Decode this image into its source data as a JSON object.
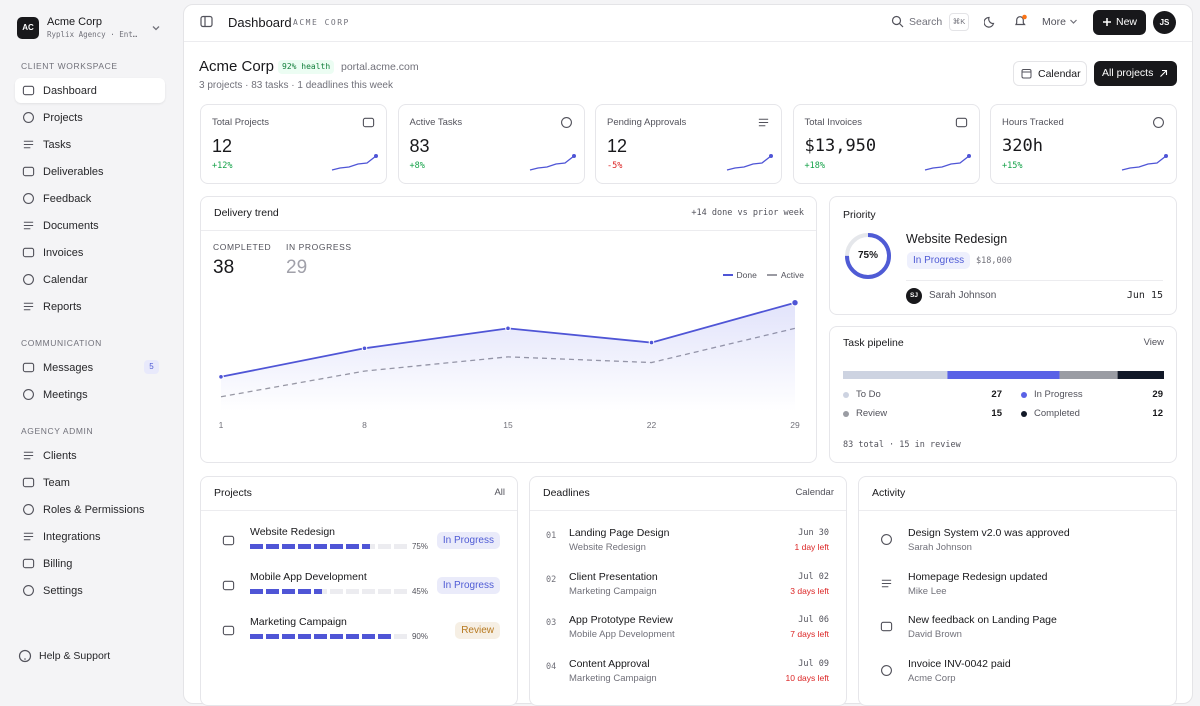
{
  "sidebar": {
    "org": {
      "initials": "AC",
      "name": "Acme Corp",
      "subtitle": "Ryplix Agency · Ent…"
    },
    "sections": [
      {
        "title": "CLIENT WORKSPACE",
        "items": [
          {
            "label": "Dashboard",
            "active": true
          },
          {
            "label": "Projects"
          },
          {
            "label": "Tasks"
          },
          {
            "label": "Deliverables"
          },
          {
            "label": "Feedback"
          },
          {
            "label": "Documents"
          },
          {
            "label": "Invoices"
          },
          {
            "label": "Calendar"
          },
          {
            "label": "Reports"
          }
        ]
      },
      {
        "title": "COMMUNICATION",
        "items": [
          {
            "label": "Messages",
            "badge": 5
          },
          {
            "label": "Meetings"
          }
        ]
      },
      {
        "title": "AGENCY ADMIN",
        "items": [
          {
            "label": "Clients"
          },
          {
            "label": "Team"
          },
          {
            "label": "Roles & Permissions"
          },
          {
            "label": "Integrations"
          },
          {
            "label": "Billing"
          },
          {
            "label": "Settings"
          }
        ]
      }
    ],
    "help": "Help & Support"
  },
  "topbar": {
    "title": "Dashboard",
    "subtitle": "ACME CORP",
    "search": "Search",
    "shortcut": "⌘K",
    "more": "More",
    "new": "New",
    "avatar": "JS"
  },
  "header": {
    "name": "Acme Corp",
    "health": "92% health",
    "url": "portal.acme.com",
    "summary": "3 projects · 83 tasks · 1 deadlines this week",
    "calendar": "Calendar",
    "all_projects": "All projects"
  },
  "kpis": [
    {
      "label": "Total Projects",
      "value": "12",
      "change": "+12%"
    },
    {
      "label": "Active Tasks",
      "value": "83",
      "change": "+8%"
    },
    {
      "label": "Pending Approvals",
      "value": "12",
      "change": "-5%"
    },
    {
      "label": "Total Invoices",
      "value": "$13,950",
      "change": "+18%"
    },
    {
      "label": "Hours Tracked",
      "value": "320h",
      "change": "+15%"
    }
  ],
  "delivery": {
    "title": "Delivery trend",
    "note": "+14 done vs prior week",
    "stats": [
      {
        "label": "COMPLETED",
        "value": 38
      },
      {
        "label": "IN PROGRESS",
        "value": 29
      }
    ],
    "chart_data": {
      "type": "line",
      "x": [
        1,
        8,
        15,
        22,
        29
      ],
      "xlim": [
        1,
        29
      ],
      "xticks": [
        1,
        8,
        15,
        22,
        29
      ],
      "ylim": [
        0,
        40
      ],
      "series": [
        {
          "name": "Done",
          "color": "#4f55d6",
          "values": [
            12,
            22,
            29,
            24,
            38
          ]
        },
        {
          "name": "Active",
          "color": "#9a9aa2",
          "values": [
            5,
            14,
            19,
            17,
            29
          ]
        }
      ]
    }
  },
  "priority": {
    "title": "Priority",
    "progress": 75,
    "progress_label": "75%",
    "project": "Website Redesign",
    "status": "In Progress",
    "budget": "$18,000",
    "owner_initials": "SJ",
    "owner": "Sarah Johnson",
    "date": "Jun 15"
  },
  "pipeline": {
    "title": "Task pipeline",
    "action": "View",
    "segments": [
      {
        "name": "To Do",
        "count": 27,
        "color": "#cdd3e1"
      },
      {
        "name": "In Progress",
        "count": 29,
        "color": "#5a62e6"
      },
      {
        "name": "Review",
        "count": 15,
        "color": "#9a9ca3"
      },
      {
        "name": "Completed",
        "count": 12,
        "color": "#111827"
      }
    ],
    "footer": "83 total · 15 in review"
  },
  "projects": {
    "title": "Projects",
    "action": "All",
    "items": [
      {
        "name": "Website Redesign",
        "progress": 75,
        "progress_label": "75%",
        "status": "In Progress",
        "status_color": "#4f5bd5"
      },
      {
        "name": "Mobile App Development",
        "progress": 45,
        "progress_label": "45%",
        "status": "In Progress",
        "status_color": "#4f5bd5"
      },
      {
        "name": "Marketing Campaign",
        "progress": 90,
        "progress_label": "90%",
        "status": "Review",
        "status_color": "#b7791f"
      }
    ]
  },
  "deadlines": {
    "title": "Deadlines",
    "action": "Calendar",
    "items": [
      {
        "number": "01",
        "title": "Landing Page Design",
        "project": "Website Redesign",
        "date": "Jun 30",
        "left": "1 day left"
      },
      {
        "number": "02",
        "title": "Client Presentation",
        "project": "Marketing Campaign",
        "date": "Jul 02",
        "left": "3 days left"
      },
      {
        "number": "03",
        "title": "App Prototype Review",
        "project": "Mobile App Development",
        "date": "Jul 06",
        "left": "7 days left"
      },
      {
        "number": "04",
        "title": "Content Approval",
        "project": "Marketing Campaign",
        "date": "Jul 09",
        "left": "10 days left"
      }
    ]
  },
  "activity": {
    "title": "Activity",
    "items": [
      {
        "text": "Design System v2.0 was approved",
        "who": "Sarah Johnson"
      },
      {
        "text": "Homepage Redesign updated",
        "who": "Mike Lee"
      },
      {
        "text": "New feedback on Landing Page",
        "who": "David Brown"
      },
      {
        "text": "Invoice INV-0042 paid",
        "who": "Acme Corp"
      }
    ]
  }
}
